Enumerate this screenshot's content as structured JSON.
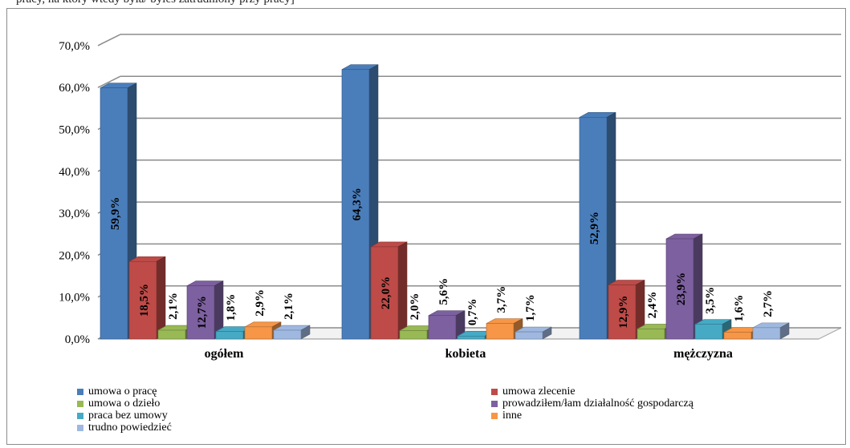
{
  "header_text": "pracy, na który wtedy była/ byłeś zatrudniony przy pracy]",
  "chart_data": {
    "type": "bar",
    "categories": [
      "ogółem",
      "kobieta",
      "mężczyzna"
    ],
    "ylim": [
      0,
      70
    ],
    "yticks": [
      "0,0%",
      "10,0%",
      "20,0%",
      "30,0%",
      "40,0%",
      "50,0%",
      "60,0%",
      "70,0%"
    ],
    "grid": true,
    "legend_position": "bottom",
    "series": [
      {
        "name": "umowa o pracę",
        "color": "#4a7ebb",
        "values": [
          59.9,
          64.3,
          52.9
        ],
        "labels": [
          "59,9%",
          "64,3%",
          "52,9%"
        ]
      },
      {
        "name": "umowa zlecenie",
        "color": "#be4b48",
        "values": [
          18.5,
          22.0,
          12.9
        ],
        "labels": [
          "18,5%",
          "22,0%",
          "12,9%"
        ]
      },
      {
        "name": "umowa o dzieło",
        "color": "#98b954",
        "values": [
          2.1,
          2.0,
          2.4
        ],
        "labels": [
          "2,1%",
          "2,0%",
          "2,4%"
        ]
      },
      {
        "name": "prowadziłem/łam działalność gospodarczą",
        "color": "#7d60a0",
        "values": [
          12.7,
          5.6,
          23.9
        ],
        "labels": [
          "12,7%",
          "5,6%",
          "23,9%"
        ]
      },
      {
        "name": "praca bez umowy",
        "color": "#46aac5",
        "values": [
          1.8,
          0.7,
          3.5
        ],
        "labels": [
          "1,8%",
          "0,7%",
          "3,5%"
        ]
      },
      {
        "name": "inne",
        "color": "#f79646",
        "values": [
          2.9,
          3.7,
          1.6
        ],
        "labels": [
          "2,9%",
          "3,7%",
          "1,6%"
        ]
      },
      {
        "name": "trudno powiedzieć",
        "color": "#9fb8e0",
        "values": [
          2.1,
          1.7,
          2.7
        ],
        "labels": [
          "2,1%",
          "1,7%",
          "2,7%"
        ]
      }
    ]
  }
}
